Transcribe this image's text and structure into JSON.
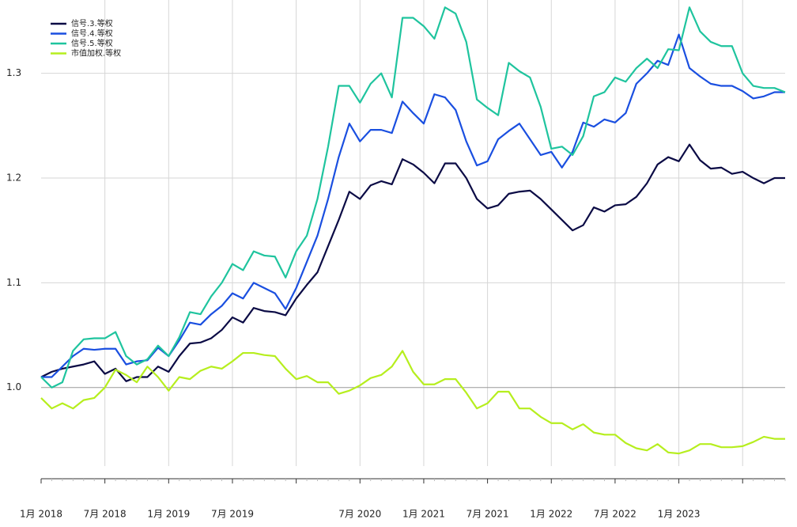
{
  "chart_data": {
    "type": "line",
    "categories": [
      "1月 2018",
      null,
      null,
      null,
      null,
      null,
      "7月 2018",
      null,
      null,
      null,
      null,
      null,
      "1月 2019",
      null,
      null,
      null,
      null,
      null,
      "7月 2019",
      null,
      null,
      null,
      null,
      null,
      null,
      null,
      null,
      null,
      null,
      null,
      "7月 2020",
      null,
      null,
      null,
      null,
      null,
      "1月 2021",
      null,
      null,
      null,
      null,
      null,
      "7月 2021",
      null,
      null,
      null,
      null,
      null,
      "1月 2022",
      null,
      null,
      null,
      null,
      null,
      "7月 2022",
      null,
      null,
      null,
      null,
      null,
      "1月 2023",
      null,
      null,
      null,
      null,
      null,
      null,
      null,
      null,
      null,
      null
    ],
    "series": [
      {
        "name": "信号.3.等权",
        "color": "#0b0b45",
        "values": [
          1.01,
          1.015,
          1.018,
          1.02,
          1.022,
          1.025,
          1.013,
          1.018,
          1.006,
          1.01,
          1.01,
          1.02,
          1.015,
          1.03,
          1.042,
          1.043,
          1.047,
          1.055,
          1.067,
          1.062,
          1.076,
          1.073,
          1.072,
          1.069,
          1.085,
          1.098,
          1.11,
          1.135,
          1.16,
          1.187,
          1.18,
          1.193,
          1.197,
          1.194,
          1.218,
          1.213,
          1.205,
          1.195,
          1.214,
          1.214,
          1.2,
          1.18,
          1.171,
          1.174,
          1.185,
          1.187,
          1.188,
          1.18,
          1.17,
          1.16,
          1.15,
          1.155,
          1.172,
          1.168,
          1.174,
          1.175,
          1.182,
          1.195,
          1.213,
          1.22,
          1.216,
          1.232,
          1.217,
          1.209,
          1.21,
          1.204,
          1.206,
          1.2,
          1.195,
          1.2,
          1.2
        ]
      },
      {
        "name": "信号.4.等权",
        "color": "#1a4fe0",
        "values": [
          1.01,
          1.01,
          1.02,
          1.03,
          1.037,
          1.036,
          1.037,
          1.037,
          1.022,
          1.025,
          1.026,
          1.038,
          1.03,
          1.045,
          1.062,
          1.06,
          1.07,
          1.078,
          1.09,
          1.085,
          1.1,
          1.095,
          1.09,
          1.075,
          1.095,
          1.12,
          1.145,
          1.18,
          1.22,
          1.252,
          1.235,
          1.246,
          1.246,
          1.243,
          1.273,
          1.262,
          1.252,
          1.28,
          1.277,
          1.265,
          1.235,
          1.212,
          1.216,
          1.237,
          1.245,
          1.252,
          1.237,
          1.222,
          1.225,
          1.21,
          1.225,
          1.253,
          1.249,
          1.256,
          1.253,
          1.262,
          1.29,
          1.3,
          1.312,
          1.308,
          1.337,
          1.305,
          1.297,
          1.29,
          1.288,
          1.288,
          1.283,
          1.276,
          1.278,
          1.282,
          1.282
        ]
      },
      {
        "name": "信号.5.等权",
        "color": "#1fc49e",
        "values": [
          1.01,
          1.0,
          1.005,
          1.035,
          1.046,
          1.047,
          1.047,
          1.053,
          1.03,
          1.022,
          1.027,
          1.04,
          1.03,
          1.048,
          1.072,
          1.07,
          1.087,
          1.1,
          1.118,
          1.112,
          1.13,
          1.126,
          1.125,
          1.105,
          1.13,
          1.145,
          1.18,
          1.23,
          1.288,
          1.288,
          1.272,
          1.29,
          1.3,
          1.277,
          1.353,
          1.353,
          1.345,
          1.333,
          1.363,
          1.357,
          1.33,
          1.275,
          1.267,
          1.26,
          1.31,
          1.302,
          1.296,
          1.268,
          1.228,
          1.23,
          1.222,
          1.24,
          1.278,
          1.282,
          1.296,
          1.292,
          1.305,
          1.314,
          1.305,
          1.323,
          1.322,
          1.363,
          1.34,
          1.33,
          1.326,
          1.326,
          1.3,
          1.288,
          1.286,
          1.286,
          1.282
        ]
      },
      {
        "name": "市值加权.等权",
        "color": "#b6ee1e",
        "values": [
          0.99,
          0.98,
          0.985,
          0.98,
          0.988,
          0.99,
          1.0,
          1.017,
          1.012,
          1.005,
          1.02,
          1.01,
          0.997,
          1.01,
          1.008,
          1.016,
          1.02,
          1.018,
          1.025,
          1.033,
          1.033,
          1.031,
          1.03,
          1.018,
          1.008,
          1.011,
          1.005,
          1.005,
          0.994,
          0.997,
          1.002,
          1.009,
          1.012,
          1.02,
          1.035,
          1.015,
          1.003,
          1.003,
          1.008,
          1.008,
          0.995,
          0.98,
          0.985,
          0.996,
          0.996,
          0.98,
          0.98,
          0.972,
          0.966,
          0.966,
          0.96,
          0.965,
          0.957,
          0.955,
          0.955,
          0.947,
          0.942,
          0.94,
          0.946,
          0.938,
          0.937,
          0.94,
          0.946,
          0.946,
          0.943,
          0.943,
          0.944,
          0.948,
          0.953,
          0.951,
          0.951
        ]
      }
    ],
    "ylim": [
      0.925,
      1.37
    ],
    "yticks": [
      {
        "value": 1,
        "label": "1.0"
      },
      1.1,
      1.2,
      1.3
    ],
    "grid": true,
    "legend": "top-left"
  }
}
